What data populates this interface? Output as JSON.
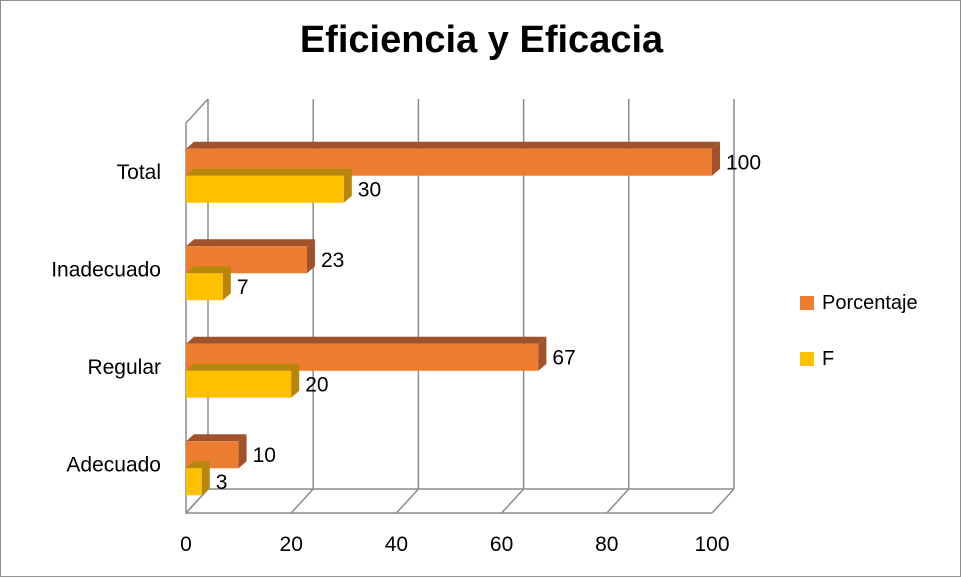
{
  "chart_data": {
    "type": "bar",
    "orientation": "horizontal",
    "title": "Eficiencia y Eficacia",
    "categories": [
      "Adecuado",
      "Regular",
      "Inadecuado",
      "Total"
    ],
    "series": [
      {
        "name": "Porcentaje",
        "values": [
          10,
          67,
          23,
          100
        ],
        "color": "#ED7D31",
        "side_color": "#A0522D"
      },
      {
        "name": "F",
        "values": [
          3,
          20,
          7,
          30
        ],
        "color": "#FFC000",
        "side_color": "#B8860B"
      }
    ],
    "xlabel": "",
    "ylabel": "",
    "xlim": [
      0,
      100
    ],
    "xticks": [
      "0",
      "20",
      "40",
      "60",
      "80",
      "100"
    ],
    "grid": true,
    "legend_position": "right",
    "style": "3d"
  },
  "colors": {
    "grid": "#8c8c8c",
    "frame": "#8c8c8c"
  }
}
